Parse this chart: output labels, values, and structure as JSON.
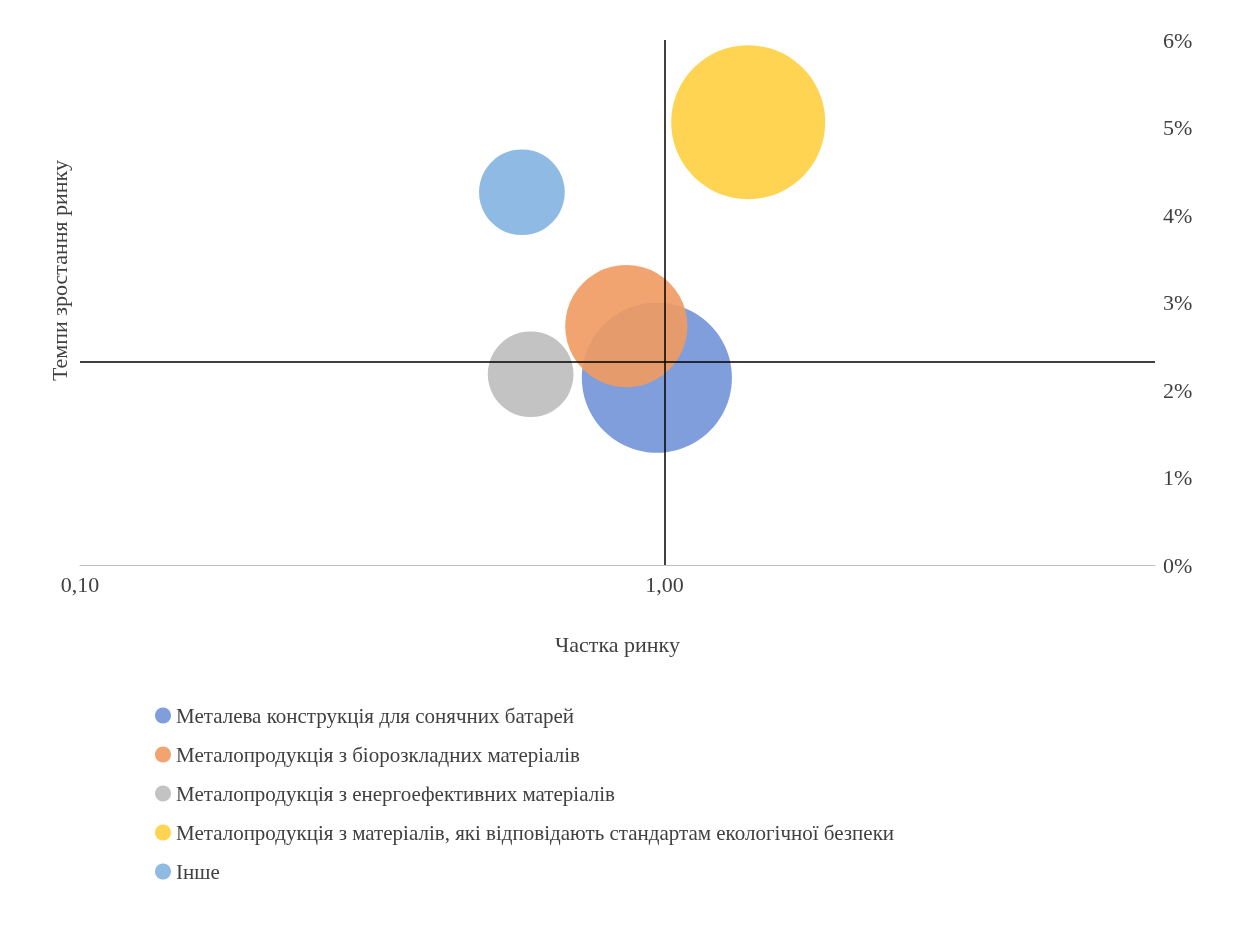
{
  "chart_data": {
    "type": "bubble",
    "xlabel": "Частка ринку",
    "ylabel": "Темпи зростання ринку",
    "log": "x",
    "xlim": [
      0.1,
      6.9
    ],
    "xticks": [
      {
        "value": 0.1,
        "label": "0,10"
      },
      {
        "value": 1,
        "label": "1,00"
      }
    ],
    "ylim": [
      0,
      6
    ],
    "yticks": [
      {
        "value": 0,
        "label": "0%"
      },
      {
        "value": 1,
        "label": "1%"
      },
      {
        "value": 2,
        "label": "2%"
      },
      {
        "value": 3,
        "label": "3%"
      },
      {
        "value": 4,
        "label": "4%"
      },
      {
        "value": 5,
        "label": "5%"
      },
      {
        "value": 6,
        "label": "6%"
      }
    ],
    "grid": false,
    "legend": "bottom",
    "ref_lines": [
      {
        "axis": "x",
        "value": 1,
        "color": "#000000"
      },
      {
        "axis": "y",
        "value": 2.32,
        "color": "#000000"
      }
    ],
    "series": [
      {
        "name": "Металева конструкція для сонячних батарей",
        "color": "#7294d8",
        "x": [
          0.97
        ],
        "values": [
          2.14
        ],
        "sizes": [
          0.95
        ]
      },
      {
        "name": "Металопродукція з біорозкладних матеріалів",
        "color": "#f09a5f",
        "x": [
          0.86
        ],
        "values": [
          2.73
        ],
        "sizes": [
          0.63
        ]
      },
      {
        "name": "Металопродукція з енергоефективних матеріалів",
        "color": "#bdbdbd",
        "x": [
          0.59
        ],
        "values": [
          2.18
        ],
        "sizes": [
          0.31
        ]
      },
      {
        "name": "Металопродукція з матеріалів, які відповідають стандартам екологічної безпеки",
        "color": "#ffcf40",
        "x": [
          1.39
        ],
        "values": [
          5.06
        ],
        "sizes": [
          1
        ]
      },
      {
        "name": "Інше",
        "color": "#82b3e0",
        "x": [
          0.57
        ],
        "values": [
          4.26
        ],
        "sizes": [
          0.31
        ]
      }
    ]
  }
}
